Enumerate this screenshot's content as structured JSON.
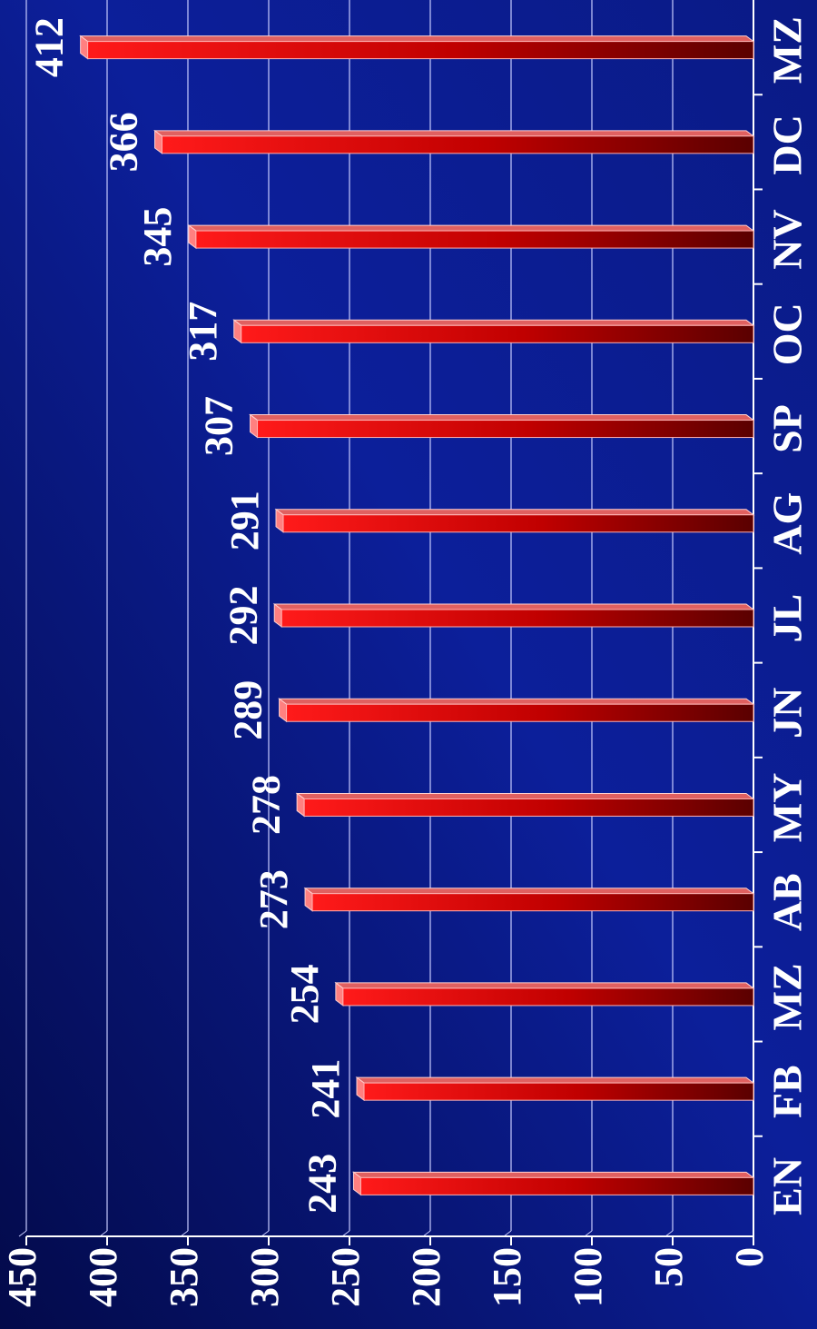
{
  "chart_data": {
    "type": "bar",
    "orientation": "rotated-90-cw",
    "categories": [
      "EN",
      "FB",
      "MZ",
      "AB",
      "MY",
      "JN",
      "JL",
      "AG",
      "SP",
      "OC",
      "NV",
      "DC",
      "MZ"
    ],
    "values": [
      243,
      241,
      254,
      273,
      278,
      289,
      292,
      291,
      307,
      317,
      345,
      366,
      412
    ],
    "ylim": [
      0,
      450
    ],
    "yticks": [
      "0",
      "50",
      "100",
      "150",
      "200",
      "250",
      "300",
      "350",
      "400",
      "450"
    ],
    "grid": true,
    "colors": {
      "background": "#0a1a8a",
      "bar_light": "#ff1a1a",
      "bar_dark": "#5a0000",
      "grid": "#c8ccff",
      "text": "#ffffff"
    }
  }
}
